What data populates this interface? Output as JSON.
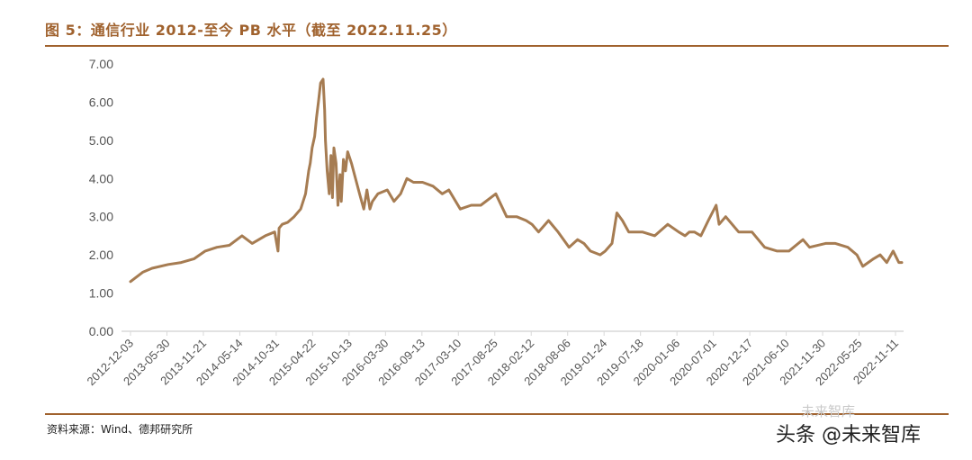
{
  "header": {
    "title": "图 5：通信行业 2012-至今 PB 水平（截至 2022.11.25）"
  },
  "footer": {
    "source": "资料来源：Wind、德邦研究所",
    "watermark": "头条 @未来智库",
    "watermark_logo": "未来智库"
  },
  "colors": {
    "accent": "#a0622e",
    "series": "#a67c52",
    "axis": "#d9d9d9"
  },
  "chart_data": {
    "type": "line",
    "title": "通信行业 2012-至今 PB 水平（截至 2022.11.25）",
    "xlabel": "",
    "ylabel": "",
    "ylim": [
      0,
      7
    ],
    "yticks": [
      "0.00",
      "1.00",
      "2.00",
      "3.00",
      "4.00",
      "5.00",
      "6.00",
      "7.00"
    ],
    "xticks": [
      "2012-12-03",
      "2013-05-30",
      "2013-11-21",
      "2014-05-14",
      "2014-10-31",
      "2015-04-22",
      "2015-10-13",
      "2016-03-30",
      "2016-09-13",
      "2017-03-10",
      "2017-08-25",
      "2018-02-12",
      "2018-08-06",
      "2019-01-24",
      "2019-07-18",
      "2020-01-06",
      "2020-07-01",
      "2020-12-17",
      "2021-06-10",
      "2021-11-30",
      "2022-05-25",
      "2022-11-11"
    ],
    "grid": false,
    "legend": "none",
    "series": [
      {
        "x": [
          "2012-12-03",
          "2013-01-31",
          "2013-03-15",
          "2013-05-30",
          "2013-07-31",
          "2013-09-30",
          "2013-11-21",
          "2014-01-15",
          "2014-03-15",
          "2014-05-14",
          "2014-07-01",
          "2014-09-01",
          "2014-10-15",
          "2014-10-31",
          "2014-11-05",
          "2014-11-20",
          "2014-12-15",
          "2015-01-15",
          "2015-02-15",
          "2015-03-10",
          "2015-03-25",
          "2015-04-01",
          "2015-04-10",
          "2015-04-22",
          "2015-05-01",
          "2015-05-10",
          "2015-05-20",
          "2015-06-01",
          "2015-06-08",
          "2015-06-12",
          "2015-06-20",
          "2015-06-30",
          "2015-07-08",
          "2015-07-15",
          "2015-07-22",
          "2015-08-01",
          "2015-08-10",
          "2015-08-20",
          "2015-08-26",
          "2015-09-05",
          "2015-09-15",
          "2015-09-25",
          "2015-10-13",
          "2015-11-01",
          "2015-11-20",
          "2015-12-10",
          "2015-12-25",
          "2016-01-08",
          "2016-01-20",
          "2016-02-15",
          "2016-03-30",
          "2016-05-01",
          "2016-06-01",
          "2016-07-01",
          "2016-08-01",
          "2016-09-13",
          "2016-11-01",
          "2016-12-15",
          "2017-01-15",
          "2017-03-10",
          "2017-05-01",
          "2017-06-15",
          "2017-08-25",
          "2017-10-15",
          "2017-12-01",
          "2018-01-15",
          "2018-02-12",
          "2018-03-15",
          "2018-05-01",
          "2018-06-15",
          "2018-08-06",
          "2018-09-15",
          "2018-10-15",
          "2018-11-15",
          "2018-12-31",
          "2019-01-24",
          "2019-02-25",
          "2019-03-20",
          "2019-04-15",
          "2019-05-15",
          "2019-07-18",
          "2019-09-15",
          "2019-11-15",
          "2020-01-06",
          "2020-02-05",
          "2020-02-25",
          "2020-03-20",
          "2020-04-20",
          "2020-05-25",
          "2020-07-01",
          "2020-07-15",
          "2020-08-15",
          "2020-10-15",
          "2020-12-17",
          "2021-02-15",
          "2021-04-15",
          "2021-06-10",
          "2021-08-15",
          "2021-09-15",
          "2021-11-30",
          "2022-01-15",
          "2022-03-15",
          "2022-04-27",
          "2022-05-25",
          "2022-07-15",
          "2022-08-15",
          "2022-09-15",
          "2022-10-15",
          "2022-11-11",
          "2022-11-25"
        ],
        "values": [
          1.3,
          1.55,
          1.65,
          1.75,
          1.8,
          1.9,
          2.1,
          2.2,
          2.25,
          2.5,
          2.3,
          2.5,
          2.6,
          2.1,
          2.7,
          2.8,
          2.85,
          3.0,
          3.2,
          3.6,
          4.2,
          4.4,
          4.8,
          5.1,
          5.6,
          6.0,
          6.5,
          6.6,
          5.8,
          5.0,
          4.2,
          3.6,
          4.6,
          3.5,
          4.8,
          4.4,
          3.3,
          4.1,
          3.4,
          4.5,
          4.2,
          4.7,
          4.4,
          4.0,
          3.6,
          3.2,
          3.7,
          3.2,
          3.4,
          3.6,
          3.7,
          3.4,
          3.6,
          4.0,
          3.9,
          3.9,
          3.8,
          3.6,
          3.7,
          3.2,
          3.3,
          3.3,
          3.6,
          3.0,
          3.0,
          2.9,
          2.8,
          2.6,
          2.9,
          2.6,
          2.2,
          2.4,
          2.3,
          2.1,
          2.0,
          2.1,
          2.3,
          3.1,
          2.9,
          2.6,
          2.6,
          2.5,
          2.8,
          2.6,
          2.5,
          2.6,
          2.6,
          2.5,
          2.9,
          3.3,
          2.8,
          3.0,
          2.6,
          2.6,
          2.2,
          2.1,
          2.1,
          2.4,
          2.2,
          2.3,
          2.3,
          2.2,
          2.0,
          1.7,
          1.9,
          2.0,
          1.8,
          2.1,
          1.8,
          1.8
        ]
      }
    ]
  }
}
